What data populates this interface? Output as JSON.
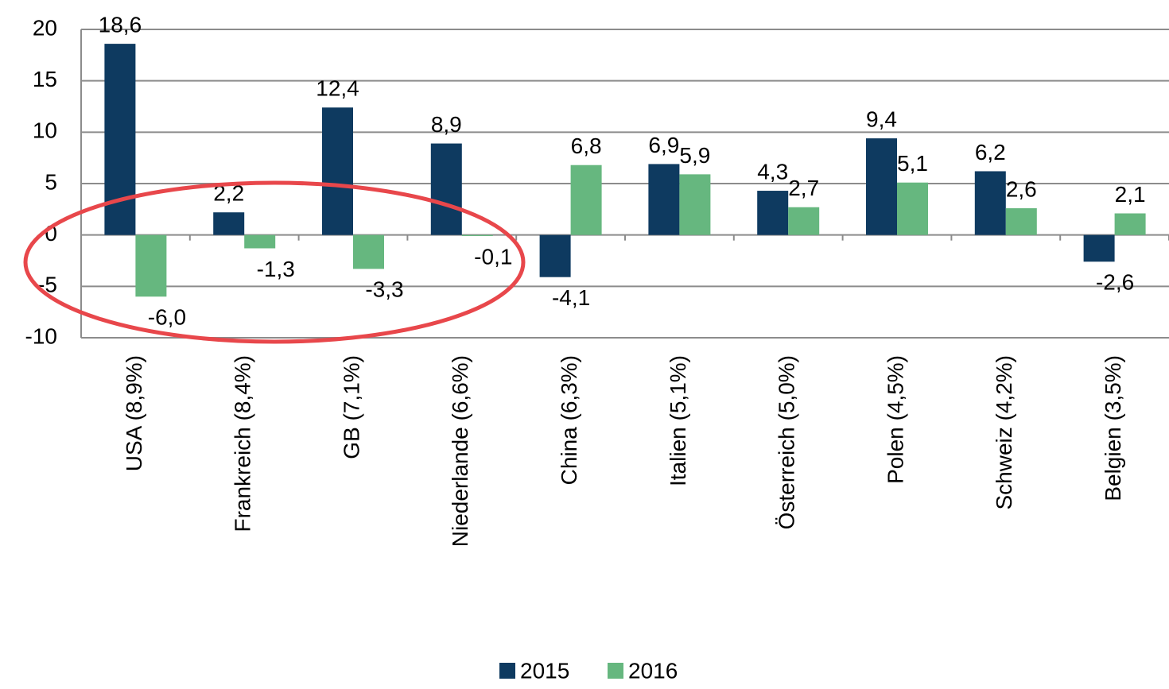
{
  "chart_data": {
    "type": "bar",
    "categories": [
      "USA (8,9%)",
      "Frankreich (8,4%)",
      "GB (7,1%)",
      "Niederlande (6,6%)",
      "China (6,3%)",
      "Italien (5,1%)",
      "Österreich (5,0%)",
      "Polen (4,5%)",
      "Schweiz (4,2%)",
      "Belgien (3,5%)"
    ],
    "series": [
      {
        "name": "2015",
        "color": "#0e3a60",
        "values": [
          18.6,
          2.2,
          12.4,
          8.9,
          -4.1,
          6.9,
          4.3,
          9.4,
          6.2,
          -2.6
        ],
        "value_labels": [
          "18,6",
          "2,2",
          "12,4",
          "8,9",
          "-4,1",
          "6,9",
          "4,3",
          "9,4",
          "6,2",
          "-2,6"
        ]
      },
      {
        "name": "2016",
        "color": "#66b77f",
        "values": [
          -6.0,
          -1.3,
          -3.3,
          -0.1,
          6.8,
          5.9,
          2.7,
          5.1,
          2.6,
          2.1
        ],
        "value_labels": [
          "-6,0",
          "-1,3",
          "-3,3",
          "-0,1",
          "6,8",
          "5,9",
          "2,7",
          "5,1",
          "2,6",
          "2,1"
        ]
      }
    ],
    "ylim": [
      -10,
      20
    ],
    "yticks": [
      -10,
      -5,
      0,
      5,
      10,
      15,
      20
    ],
    "grid": true
  }
}
